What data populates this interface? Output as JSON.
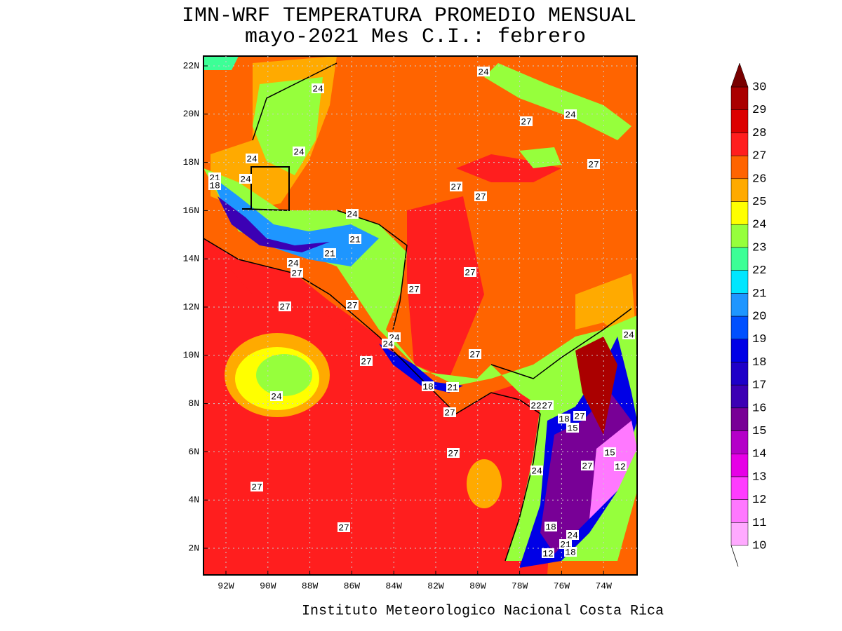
{
  "map": {
    "title": "IMN-WRF  TEMPERATURA PROMEDIO MENSUAL",
    "subtitle": "mayo-2021 Mes C.I.: febrero",
    "footer": "Instituto Meteorologico Nacional Costa Rica",
    "lon_ticks": [
      {
        "value": -92,
        "label": "92W"
      },
      {
        "value": -90,
        "label": "90W"
      },
      {
        "value": -88,
        "label": "88W"
      },
      {
        "value": -86,
        "label": "86W"
      },
      {
        "value": -84,
        "label": "84W"
      },
      {
        "value": -82,
        "label": "82W"
      },
      {
        "value": -80,
        "label": "80W"
      },
      {
        "value": -78,
        "label": "78W"
      },
      {
        "value": -76,
        "label": "76W"
      },
      {
        "value": -74,
        "label": "74W"
      }
    ],
    "lat_ticks": [
      {
        "value": 22,
        "label": "22N"
      },
      {
        "value": 20,
        "label": "20N"
      },
      {
        "value": 18,
        "label": "18N"
      },
      {
        "value": 16,
        "label": "16N"
      },
      {
        "value": 14,
        "label": "14N"
      },
      {
        "value": 12,
        "label": "12N"
      },
      {
        "value": 10,
        "label": "10N"
      },
      {
        "value": 8,
        "label": "8N"
      },
      {
        "value": 6,
        "label": "6N"
      },
      {
        "value": 4,
        "label": "4N"
      },
      {
        "value": 2,
        "label": "2N"
      }
    ],
    "colorbar": {
      "levels": [
        10,
        11,
        12,
        13,
        14,
        15,
        16,
        17,
        18,
        19,
        20,
        21,
        22,
        23,
        24,
        25,
        26,
        27,
        28,
        29,
        30
      ],
      "colors": [
        "#ffaaff",
        "#ff78ff",
        "#ff3cff",
        "#e600e6",
        "#b400c8",
        "#780096",
        "#3c00b4",
        "#1e00c8",
        "#0000e6",
        "#0050ff",
        "#1e96ff",
        "#00e6ff",
        "#3cff96",
        "#96ff3c",
        "#ffff00",
        "#ffaa00",
        "#ff6400",
        "#ff1e1e",
        "#dc0000",
        "#aa0000"
      ],
      "over_color": "#780000"
    },
    "contour_labels": [
      24,
      24,
      27,
      24,
      24,
      24,
      27,
      21,
      18,
      24,
      27,
      27,
      24,
      21,
      21,
      24,
      27,
      27,
      27,
      27,
      27,
      24,
      24,
      24,
      27,
      27,
      18,
      21,
      24,
      22,
      27,
      27,
      18,
      15,
      27,
      27,
      15,
      27,
      12,
      24,
      27,
      27,
      18,
      24,
      21,
      12,
      18
    ]
  }
}
